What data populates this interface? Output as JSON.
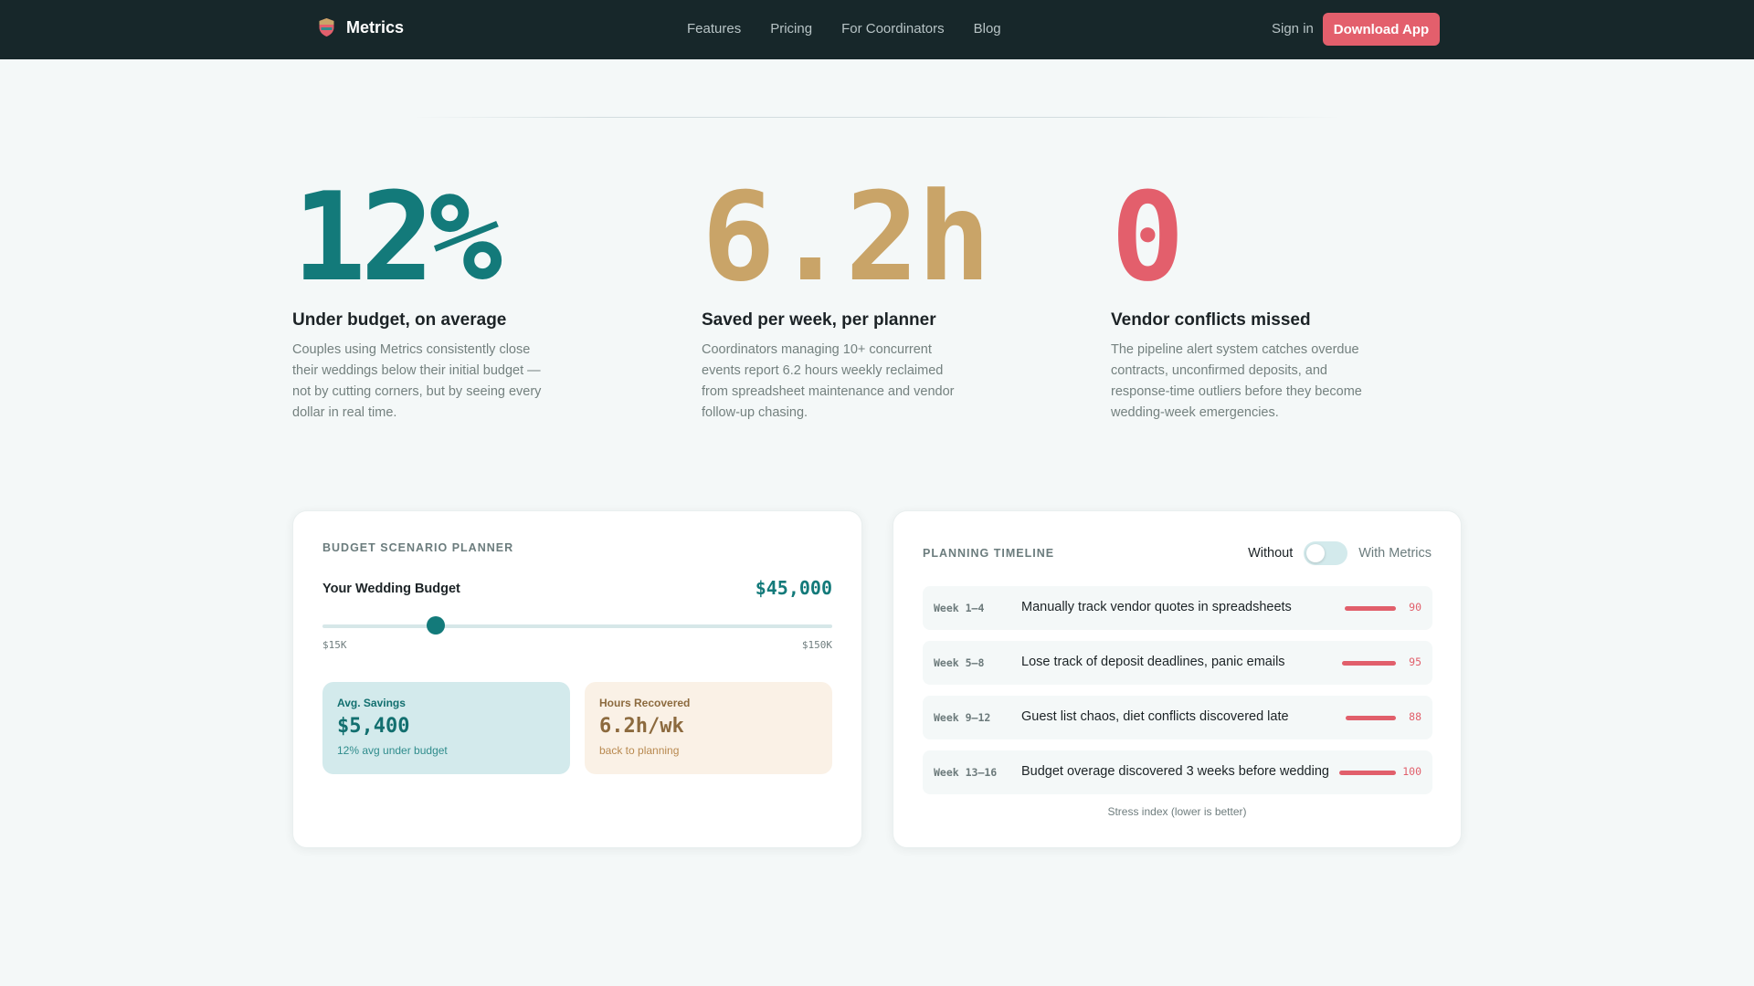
{
  "nav": {
    "brand": "Metrics",
    "links": [
      "Features",
      "Pricing",
      "For Coordinators",
      "Blog"
    ],
    "signin": "Sign in",
    "cta": "Download App"
  },
  "stats": [
    {
      "number": "12%",
      "title": "Under budget, on average",
      "desc": "Couples using Metrics consistently close their weddings below their initial budget — not by cutting corners, but by seeing every dollar in real time.",
      "color": "#137a7a"
    },
    {
      "number": "6.2h",
      "title": "Saved per week, per planner",
      "desc": "Coordinators managing 10+ concurrent events report 6.2 hours weekly reclaimed from spreadsheet maintenance and vendor follow-up chasing.",
      "color": "#c9a468"
    },
    {
      "number": "0",
      "title": "Vendor conflicts missed",
      "desc": "The pipeline alert system catches overdue contracts, unconfirmed deposits, and response-time outliers before they become wedding-week emergencies.",
      "color": "#e35f6c"
    }
  ],
  "budget": {
    "eyebrow": "BUDGET SCENARIO PLANNER",
    "label": "Your Wedding Budget",
    "value": "$45,000",
    "amount": 45000,
    "min_amount": 15000,
    "max_amount": 150000,
    "min_label": "$15K",
    "max_label": "$150K",
    "savings": {
      "label": "Avg. Savings",
      "value": "$5,400",
      "sub": "12% avg under budget"
    },
    "hours": {
      "label": "Hours Recovered",
      "value": "6.2h/wk",
      "sub": "back to planning"
    }
  },
  "timeline": {
    "eyebrow": "PLANNING TIMELINE",
    "toggle_off": "Without",
    "toggle_on": "With Metrics",
    "toggle_state": false,
    "rows": [
      {
        "week": "Week 1–4",
        "text": "Manually track vendor quotes in spreadsheets",
        "score": "90",
        "value": 90
      },
      {
        "week": "Week 5–8",
        "text": "Lose track of deposit deadlines, panic emails",
        "score": "95",
        "value": 95
      },
      {
        "week": "Week 9–12",
        "text": "Guest list chaos, diet conflicts discovered late",
        "score": "88",
        "value": 88
      },
      {
        "week": "Week 13–16",
        "text": "Budget overage discovered 3 weeks before wedding",
        "score": "100",
        "value": 100
      }
    ],
    "caption": "Stress index (lower is better)"
  },
  "colors": {
    "accent_teal": "#137a7a",
    "accent_sand": "#c9a468",
    "accent_coral": "#e35f6c",
    "nav_bg": "#17272a"
  }
}
